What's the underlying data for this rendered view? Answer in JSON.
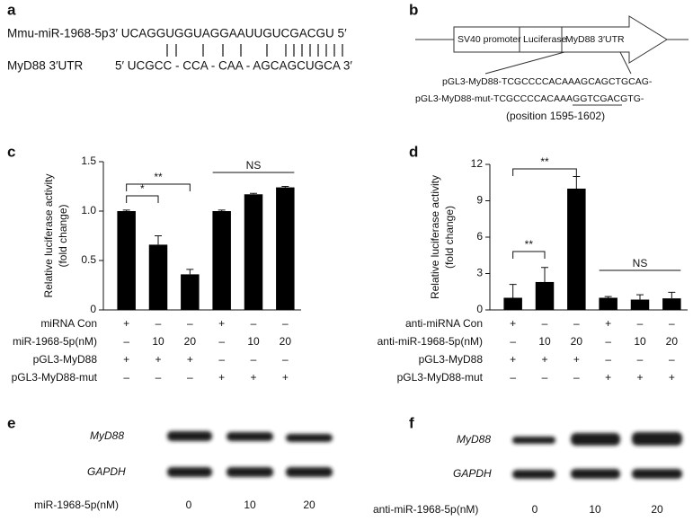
{
  "panel_a": {
    "label": "a",
    "rows": [
      {
        "name": "Mmu-miR-1968-5p",
        "sequence": "3′ UCAGGUGGUAGGAAUUGUCGACGU 5′"
      },
      {
        "name": "MyD88  3′UTR",
        "sequence": "5′ UCGCC - CCA - CAA - AGCAGCUGCA 3′"
      }
    ]
  },
  "panel_b": {
    "label": "b",
    "segments": [
      "SV40 promoter",
      "Luciferase",
      "MyD88 3′UTR"
    ],
    "sequences": [
      "pGL3-MyD88-TCGCCCCACAAAGCAGCTGCAG-",
      "pGL3-MyD88-mut-TCGCCCCACAAAGGTCGACGTG-"
    ],
    "position": "(position 1595-1602)"
  },
  "chart_data": [
    {
      "type": "bar",
      "label": "c",
      "ylabel": [
        "Relative luciferase activity",
        "(fold change)"
      ],
      "values": [
        1.0,
        0.66,
        0.36,
        1.0,
        1.17,
        1.24
      ],
      "errors": [
        0.01,
        0.09,
        0.05,
        0.01,
        0.01,
        0.01
      ],
      "color": "#000000",
      "ylim": [
        0,
        1.5
      ],
      "yticks": [
        0,
        0.5,
        {
          "value": 1,
          "label": "1.0"
        },
        1.5
      ],
      "annotations": [
        "*",
        "**",
        "NS"
      ],
      "conditions": [
        {
          "label": "miRNA Con",
          "values": [
            "+",
            "–",
            "–",
            "+",
            "–",
            "–"
          ]
        },
        {
          "label": "miR-1968-5p(nM)",
          "values": [
            "–",
            "10",
            "20",
            "–",
            "10",
            "20"
          ]
        },
        {
          "label": "pGL3-MyD88",
          "values": [
            "+",
            "+",
            "+",
            "–",
            "–",
            "–"
          ]
        },
        {
          "label": "pGL3-MyD88-mut",
          "values": [
            "–",
            "–",
            "–",
            "+",
            "+",
            "+"
          ]
        }
      ]
    },
    {
      "type": "bar",
      "label": "d",
      "ylabel": [
        "Relative luciferase activity",
        "(fold change)"
      ],
      "values": [
        1.0,
        2.3,
        10.0,
        1.0,
        0.85,
        0.95
      ],
      "errors": [
        1.1,
        1.2,
        1.0,
        0.1,
        0.4,
        0.5
      ],
      "color": "#000000",
      "ylim": [
        0,
        12
      ],
      "yticks": [
        0,
        3,
        6,
        9,
        12
      ],
      "annotations": [
        "**",
        "**",
        "NS"
      ],
      "conditions": [
        {
          "label": "anti-miRNA Con",
          "values": [
            "+",
            "–",
            "–",
            "+",
            "–",
            "–"
          ]
        },
        {
          "label": "anti-miR-1968-5p(nM)",
          "values": [
            "–",
            "10",
            "20",
            "–",
            "10",
            "20"
          ]
        },
        {
          "label": "pGL3-MyD88",
          "values": [
            "+",
            "+",
            "+",
            "–",
            "–",
            "–"
          ]
        },
        {
          "label": "pGL3-MyD88-mut",
          "values": [
            "–",
            "–",
            "–",
            "+",
            "+",
            "+"
          ]
        }
      ]
    }
  ],
  "panel_e": {
    "label": "e",
    "bands": [
      "MyD88",
      "GAPDH"
    ],
    "treatment": "miR-1968-5p(nM)",
    "lanes": [
      "0",
      "10",
      "20"
    ]
  },
  "panel_f": {
    "label": "f",
    "bands": [
      "MyD88",
      "GAPDH"
    ],
    "treatment": "anti-miR-1968-5p(nM)",
    "lanes": [
      "0",
      "10",
      "20"
    ]
  }
}
